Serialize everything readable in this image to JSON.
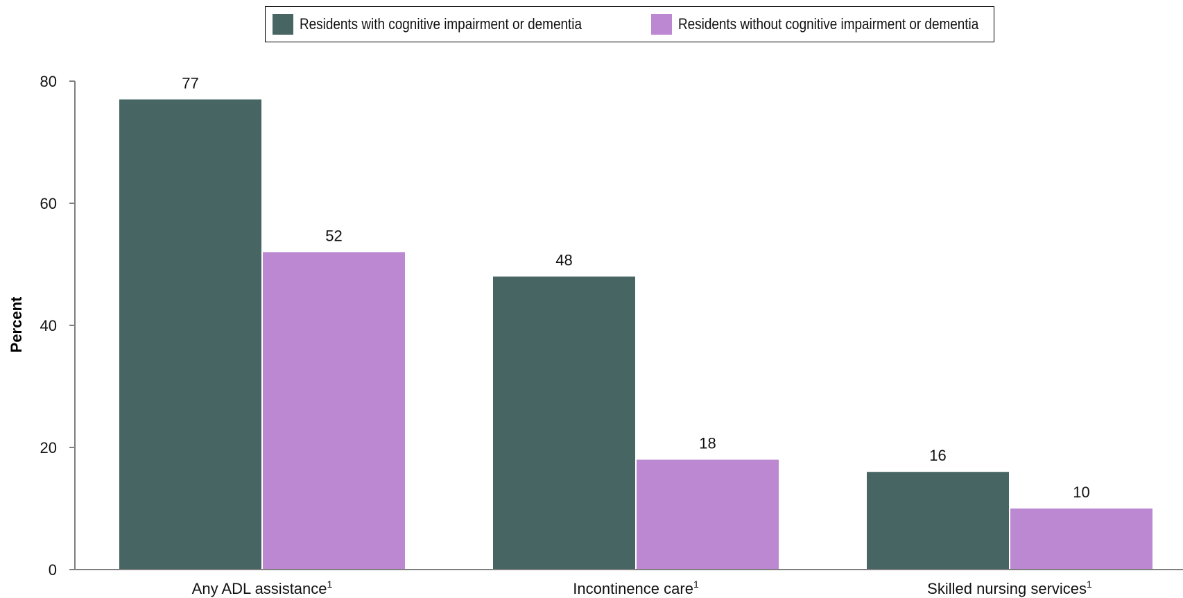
{
  "chart_data": {
    "type": "bar",
    "categories": [
      "Any ADL assistance",
      "Incontinence care",
      "Skilled nursing services"
    ],
    "category_superscripts": [
      "1",
      "1",
      "1"
    ],
    "series": [
      {
        "name": "Residents with cognitive impairment or dementia",
        "color": "#466563",
        "values": [
          77,
          48,
          16
        ]
      },
      {
        "name": "Residents without cognitive impairment or dementia",
        "color": "#bd88d2",
        "values": [
          52,
          18,
          10
        ]
      }
    ],
    "xlabel": "",
    "ylabel": "Percent",
    "ylim": [
      0,
      80
    ],
    "yticks": [
      0,
      20,
      40,
      60,
      80
    ],
    "grid": false,
    "legend": "top"
  }
}
